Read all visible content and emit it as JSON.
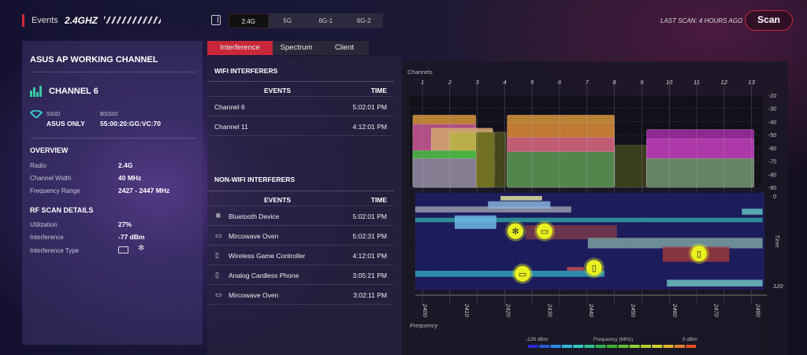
{
  "topbar": {
    "label": "Events",
    "band": "2.4GHZ",
    "band_tabs": [
      "2.4G",
      "5G",
      "6G-1",
      "6G-2"
    ],
    "selected_band": "2.4G",
    "last_scan": "LAST SCAN: 4 HOURS AGO",
    "scan_button": "Scan"
  },
  "left": {
    "title": "ASUS AP WORKING CHANNEL",
    "channel": "CHANNEL 6",
    "ssid_label": "SSID",
    "ssid": "ASUS ONLY",
    "bssid_label": "BSSID",
    "bssid": "55:00:20:GG:VC:70",
    "overview_title": "OVERVIEW",
    "overview": [
      {
        "k": "Radio",
        "v": "2.4G"
      },
      {
        "k": "Channel Width",
        "v": "40 MHz"
      },
      {
        "k": "Frequency Range",
        "v": "2427 - 2447 MHz"
      }
    ],
    "rf_title": "RF SCAN DETAILS",
    "rf": [
      {
        "k": "Utilization",
        "v": "27%"
      },
      {
        "k": "Interference",
        "v": "-77 dBm"
      },
      {
        "k": "Interference Type",
        "v": ""
      }
    ],
    "interference_type_icons": [
      "microwave-icon",
      "bluetooth-icon"
    ]
  },
  "tabs": [
    "Interference",
    "Spectrum",
    "Client"
  ],
  "active_tab": "Interference",
  "wifi": {
    "title": "WIFI INTERFERERS",
    "col_events": "EVENTS",
    "col_time": "TIME",
    "rows": [
      {
        "name": "Channel 6",
        "time": "5:02:01 PM"
      },
      {
        "name": "Channel 11",
        "time": "4:12:01 PM"
      }
    ]
  },
  "nonwifi": {
    "title": "NON-WIFI INTERFERERS",
    "col_events": "EVENTS",
    "col_time": "TIME",
    "rows": [
      {
        "icon": "bluetooth-icon",
        "name": "Bluetooth Device",
        "time": "5:02:01 PM"
      },
      {
        "icon": "microwave-icon",
        "name": "Mircowave Oven",
        "time": "5:02:31 PM"
      },
      {
        "icon": "game-controller-icon",
        "name": "Wireless Game Controller",
        "time": "4:12:01 PM"
      },
      {
        "icon": "phone-icon",
        "name": "Analog Cardless Phone",
        "time": "3:05:21 PM"
      },
      {
        "icon": "microwave-icon",
        "name": "Mircowave Oven",
        "time": "3:02:11 PM"
      }
    ]
  },
  "chart_data": [
    {
      "type": "area",
      "title": "",
      "xlabel": "Channels",
      "ylabel": "",
      "x_ticks": [
        "1",
        "2",
        "3",
        "4",
        "5",
        "6",
        "7",
        "8",
        "9",
        "10",
        "11",
        "12",
        "13"
      ],
      "y_ticks": [
        -20,
        -30,
        -40,
        -50,
        -60,
        -70,
        -80,
        -90
      ],
      "ylim": [
        -90,
        -20
      ],
      "grid": true,
      "bands": [
        {
          "ch": [
            0.65,
            2.95
          ],
          "top": -35,
          "color": "#c98a3a"
        },
        {
          "ch": [
            0.65,
            2.95
          ],
          "top": -42,
          "color": "#b04a8a"
        },
        {
          "ch": [
            1.32,
            3.57
          ],
          "top": -45,
          "color": "#d0a070"
        },
        {
          "ch": [
            1.98,
            3.62
          ],
          "top": -48,
          "color": "#b8b048"
        },
        {
          "ch": [
            2.95,
            3.65
          ],
          "top": -48,
          "color": "#6a6a20"
        },
        {
          "ch": [
            3.62,
            4.05
          ],
          "top": -48,
          "color": "#4a4a20"
        },
        {
          "ch": [
            0.65,
            2.95
          ],
          "top": -62,
          "color": "#40b040"
        },
        {
          "ch": [
            0.65,
            2.95
          ],
          "top": -68,
          "color": "#8a7a9a"
        },
        {
          "ch": [
            4.09,
            8.0
          ],
          "top": -35,
          "color": "#c98a3a"
        },
        {
          "ch": [
            4.09,
            8.0
          ],
          "top": -41,
          "color": "#c07a35"
        },
        {
          "ch": [
            4.09,
            8.0
          ],
          "top": -52,
          "color": "#c05a7a"
        },
        {
          "ch": [
            4.09,
            8.0
          ],
          "top": -63,
          "color": "#4a8a4a"
        },
        {
          "ch": [
            8.02,
            9.17
          ],
          "top": -58,
          "color": "#3e4020"
        },
        {
          "ch": [
            9.17,
            13.09
          ],
          "top": -46,
          "color": "#9a2aa0"
        },
        {
          "ch": [
            9.17,
            13.09
          ],
          "top": -53,
          "color": "#b03aa8"
        },
        {
          "ch": [
            9.17,
            13.09
          ],
          "top": -68,
          "color": "#5e8a60"
        }
      ]
    },
    {
      "type": "heatmap",
      "xlabel": "Frequency",
      "ylabel": "Time",
      "x_ticks": [
        2400,
        2410,
        2420,
        2430,
        2440,
        2450,
        2460,
        2470,
        2480
      ],
      "y_ticks": [
        0,
        120
      ],
      "colorbar": {
        "min_label": "-128 dBm",
        "mid_label": "Frequency (MHz)",
        "max_label": "0 dBm",
        "colors": [
          "#2a2ad0",
          "#2a5ad8",
          "#2a8ae0",
          "#30b8d8",
          "#30c8c0",
          "#30c090",
          "#30b050",
          "#40b030",
          "#60c030",
          "#90d030",
          "#b0d030",
          "#d0d030",
          "#e0b030",
          "#e08030",
          "#e05020"
        ]
      },
      "streaks": [
        {
          "f": [
            2397,
            2435
          ],
          "t": [
            14,
            22
          ],
          "color": "#9a9aa8"
        },
        {
          "f": [
            2418,
            2428
          ],
          "t": [
            0,
            6
          ],
          "color": "#e0e0a0"
        },
        {
          "f": [
            2415,
            2430
          ],
          "t": [
            7,
            17
          ],
          "color": "#8ab0d8"
        },
        {
          "f": [
            2397,
            2481
          ],
          "t": [
            29,
            35
          ],
          "color": "#30a0a0"
        },
        {
          "f": [
            2476,
            2481
          ],
          "t": [
            17,
            25
          ],
          "color": "#60c0c0"
        },
        {
          "f": [
            2407,
            2417
          ],
          "t": [
            26,
            44
          ],
          "color": "#70b8e8"
        },
        {
          "f": [
            2424,
            2446
          ],
          "t": [
            39,
            58
          ],
          "color": "#7a3a4a"
        },
        {
          "f": [
            2439,
            2481
          ],
          "t": [
            56,
            70
          ],
          "color": "#7aa0a0"
        },
        {
          "f": [
            2457,
            2473
          ],
          "t": [
            68,
            88
          ],
          "color": "#9a3a3a"
        },
        {
          "f": [
            2397,
            2443
          ],
          "t": [
            100,
            108
          ],
          "color": "#30a0b8"
        },
        {
          "f": [
            2434,
            2438
          ],
          "t": [
            95,
            100
          ],
          "color": "#c05050"
        },
        {
          "f": [
            2458,
            2481
          ],
          "t": [
            112,
            121
          ],
          "color": "#70c0c0"
        }
      ],
      "markers": [
        {
          "icon": "bluetooth-icon",
          "f": 2421.6,
          "t": 47
        },
        {
          "icon": "microwave-icon",
          "f": 2428.6,
          "t": 47
        },
        {
          "icon": "game-controller-icon",
          "f": 2465.7,
          "t": 77
        },
        {
          "icon": "phone-icon",
          "f": 2440.5,
          "t": 96
        },
        {
          "icon": "microwave-icon",
          "f": 2423.3,
          "t": 104
        }
      ],
      "marker_color": "#e8f020"
    }
  ]
}
